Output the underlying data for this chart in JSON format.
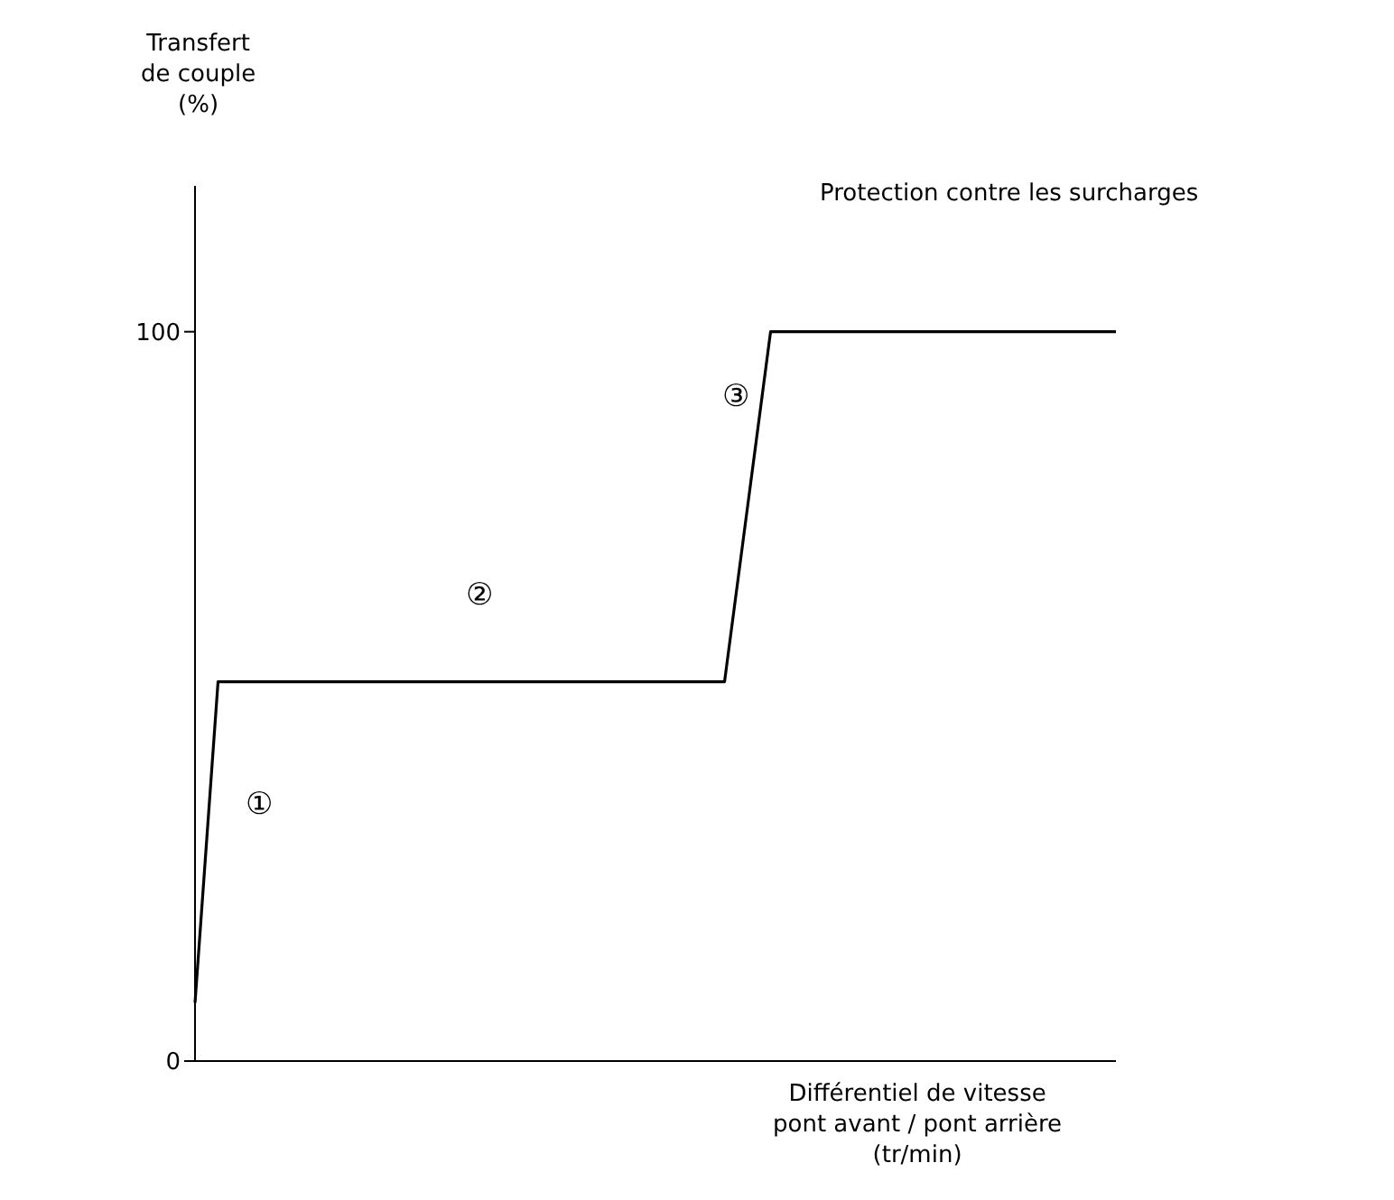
{
  "chart_data": {
    "type": "line",
    "xlabel": "Différentiel de vitesse\npont avant / pont arrière\n(tr/min)",
    "ylabel": "Transfert\nde couple\n(%)",
    "categories": [
      null,
      null,
      null,
      null,
      null,
      null,
      null,
      null,
      null,
      null,
      null,
      null,
      null,
      null,
      null,
      null,
      null,
      null,
      null,
      null,
      null,
      null,
      null,
      null,
      null,
      null,
      null,
      null,
      null,
      null,
      null,
      null,
      null,
      null,
      null,
      null,
      null,
      null,
      null,
      null,
      null
    ],
    "series": [
      {
        "color": "#000000",
        "values": [
          8,
          52,
          52,
          52,
          52,
          52,
          52,
          52,
          52,
          52,
          52,
          52,
          52,
          52,
          52,
          52,
          52,
          52,
          52,
          52,
          52,
          52,
          52,
          52,
          76,
          100,
          100,
          100,
          100,
          100,
          100,
          100,
          100,
          100,
          100,
          100,
          100,
          100,
          100,
          100,
          100
        ]
      }
    ],
    "ylim": [
      0,
      120
    ],
    "yticks": [
      0,
      100
    ],
    "tick_labels": "y",
    "grid": false,
    "legend": false,
    "marker": "none",
    "line_style": "solid",
    "annotations": [
      "①",
      "②",
      "③",
      "Protection contre les surcharges"
    ]
  }
}
